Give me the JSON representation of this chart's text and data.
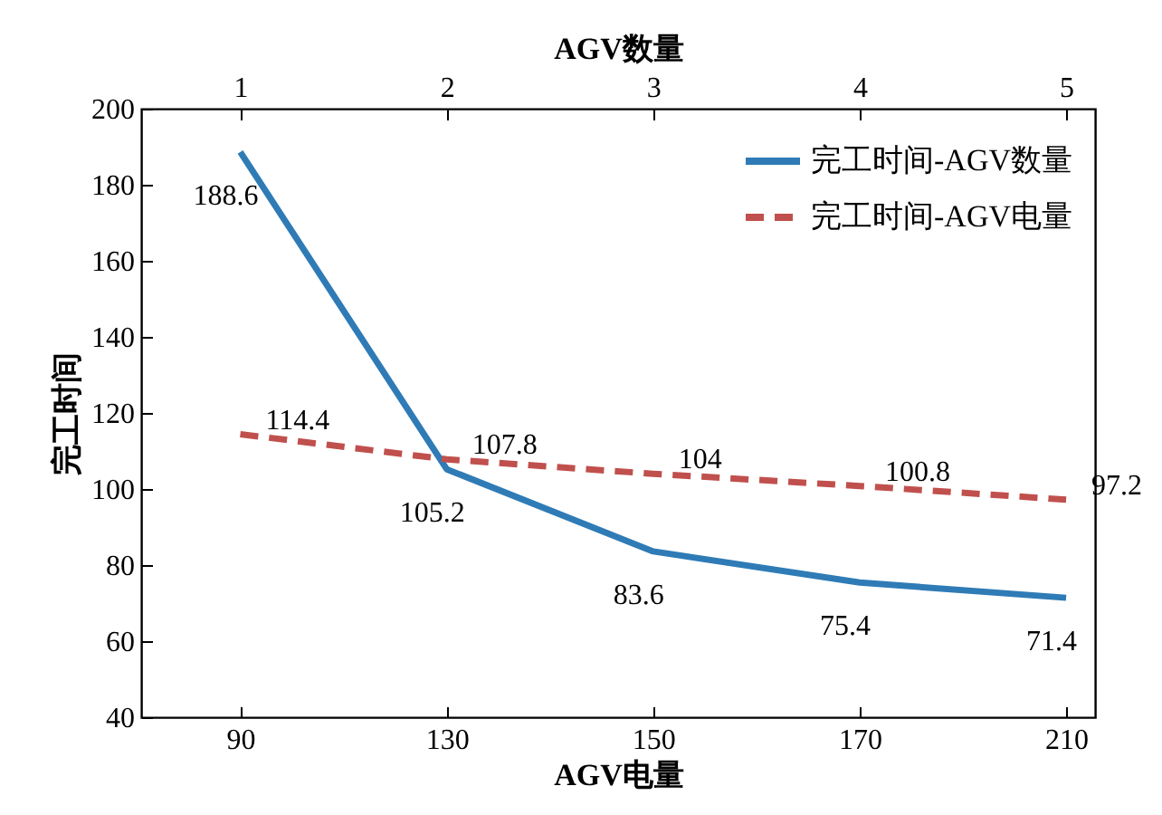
{
  "chart_data": {
    "type": "line",
    "xlabel": "AGV电量",
    "x2label": "AGV数量",
    "ylabel": "完工时间",
    "categories": [
      "90",
      "130",
      "150",
      "170",
      "210"
    ],
    "x2lim": [
      0.52,
      5.14
    ],
    "x2ticks": [
      1,
      2,
      3,
      4,
      5
    ],
    "ylim": [
      40,
      200
    ],
    "yticks": [
      40,
      60,
      80,
      100,
      120,
      140,
      160,
      180,
      200
    ],
    "series": [
      {
        "name": "完工时间-AGV数量",
        "color": "#2f7bb6",
        "axis": "x2",
        "x": [
          1,
          2,
          3,
          4,
          5
        ],
        "values": [
          188.6,
          105.2,
          83.6,
          75.4,
          71.4
        ],
        "line_style": "solid"
      },
      {
        "name": "完工时间-AGV电量",
        "color": "#c0504d",
        "values": [
          114.4,
          107.8,
          104,
          100.8,
          97.2
        ],
        "line_style": "dashed"
      }
    ],
    "data_labels": true,
    "legend": "top right",
    "grid": false,
    "marker": "none"
  }
}
